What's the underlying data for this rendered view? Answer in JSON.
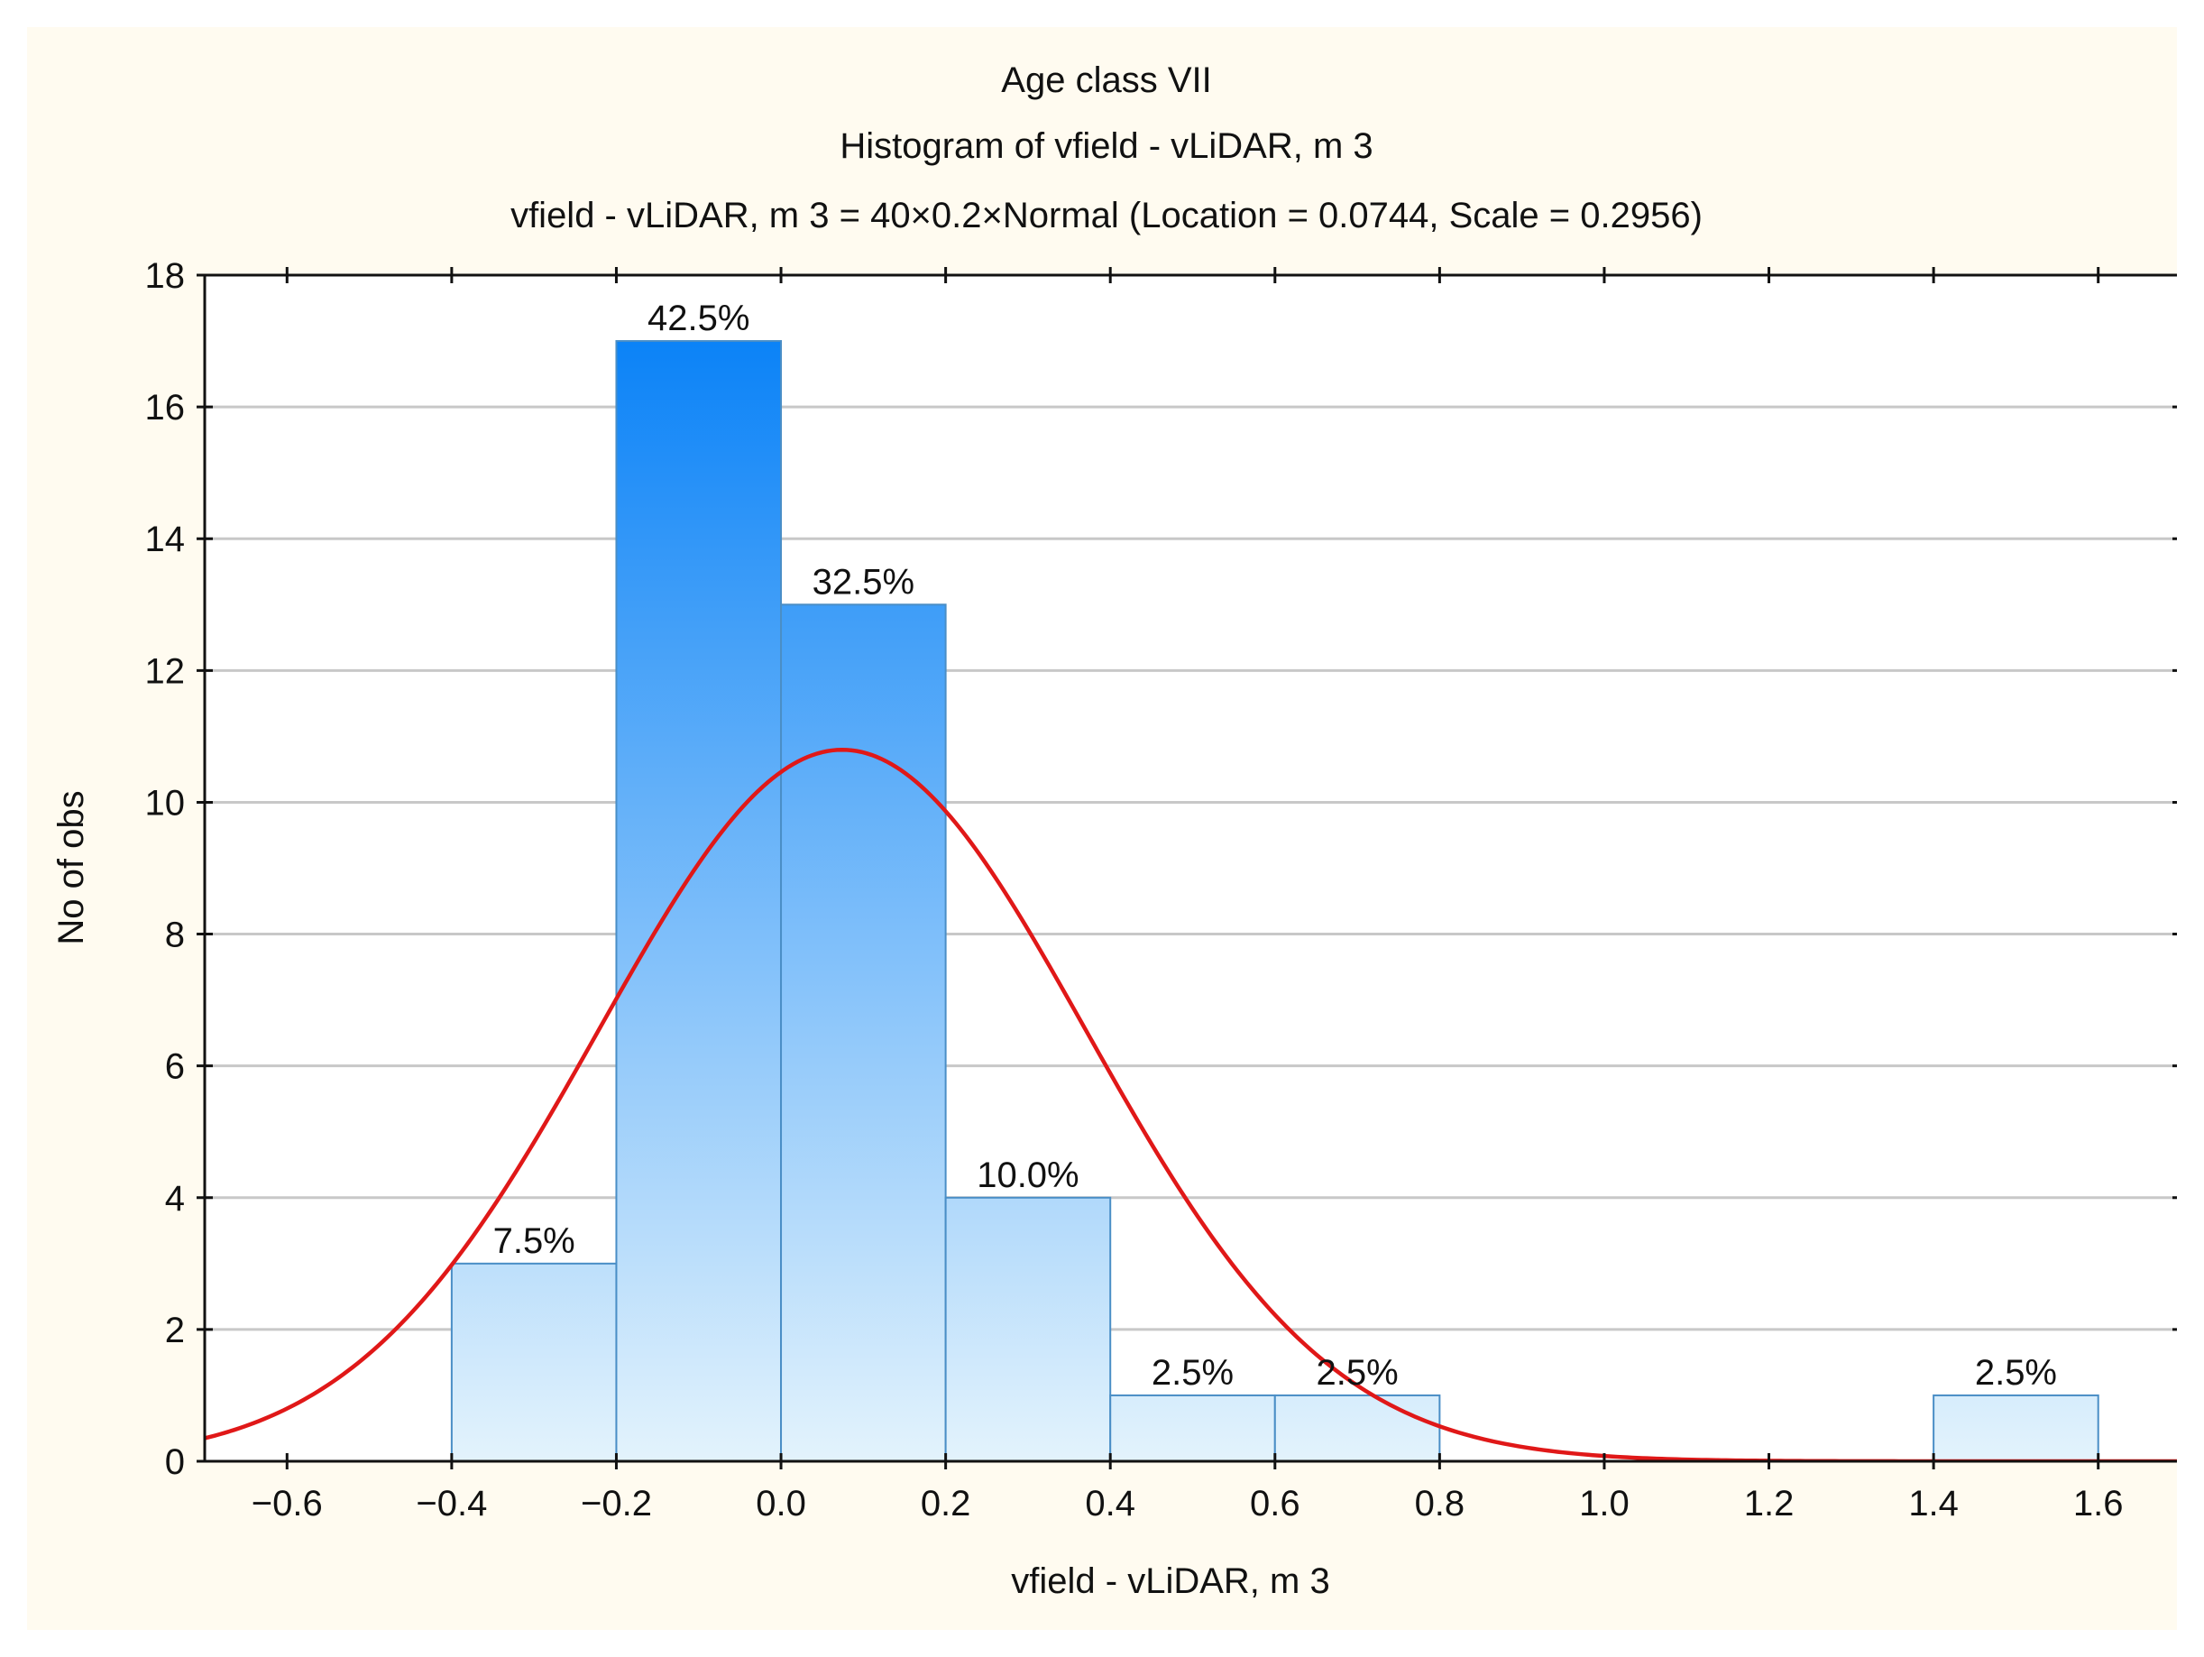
{
  "chart_data": {
    "type": "bar",
    "title": "Age class VII",
    "subtitle": "Histogram of vfield - vLiDAR, m 3",
    "fit_label": "vfield - vLiDAR, m 3 = 40×0.2×Normal (Location = 0.0744, Scale = 0.2956)",
    "xlabel": "vfield - vLiDAR, m 3",
    "ylabel": "No of obs",
    "xlim": [
      -0.7,
      1.7
    ],
    "ylim": [
      0,
      18
    ],
    "x_ticks": [
      -0.6,
      -0.4,
      -0.2,
      0.0,
      0.2,
      0.4,
      0.6,
      0.8,
      1.0,
      1.2,
      1.4,
      1.6
    ],
    "x_tick_labels": [
      "−0.6",
      "−0.4",
      "−0.2",
      "0.0",
      "0.2",
      "0.4",
      "0.6",
      "0.8",
      "1.0",
      "1.2",
      "1.4",
      "1.6"
    ],
    "y_ticks": [
      0,
      2,
      4,
      6,
      8,
      10,
      12,
      14,
      16,
      18
    ],
    "y_tick_labels": [
      "0",
      "2",
      "4",
      "6",
      "8",
      "10",
      "12",
      "14",
      "16",
      "18"
    ],
    "grid": true,
    "bins": [
      {
        "from": -0.4,
        "to": -0.2,
        "count": 3,
        "label": "7.5%"
      },
      {
        "from": -0.2,
        "to": 0.0,
        "count": 17,
        "label": "42.5%"
      },
      {
        "from": 0.0,
        "to": 0.2,
        "count": 13,
        "label": "32.5%"
      },
      {
        "from": 0.2,
        "to": 0.4,
        "count": 4,
        "label": "10.0%"
      },
      {
        "from": 0.4,
        "to": 0.6,
        "count": 1,
        "label": "2.5%"
      },
      {
        "from": 0.6,
        "to": 0.8,
        "count": 1,
        "label": "2.5%"
      },
      {
        "from": 1.4,
        "to": 1.6,
        "count": 1,
        "label": "2.5%"
      }
    ],
    "fit": {
      "distribution": "Normal",
      "n": 40,
      "bin_width": 0.2,
      "location": 0.0744,
      "scale": 0.2956
    },
    "colors": {
      "bar_top": "#0a82f7",
      "bar_bottom": "#e3f3fc",
      "bar_stroke": "#4a8ec6",
      "curve": "#e01818",
      "grid": "#c8c8c8",
      "background": "#fffbf0",
      "plot_background": "#ffffff"
    }
  }
}
